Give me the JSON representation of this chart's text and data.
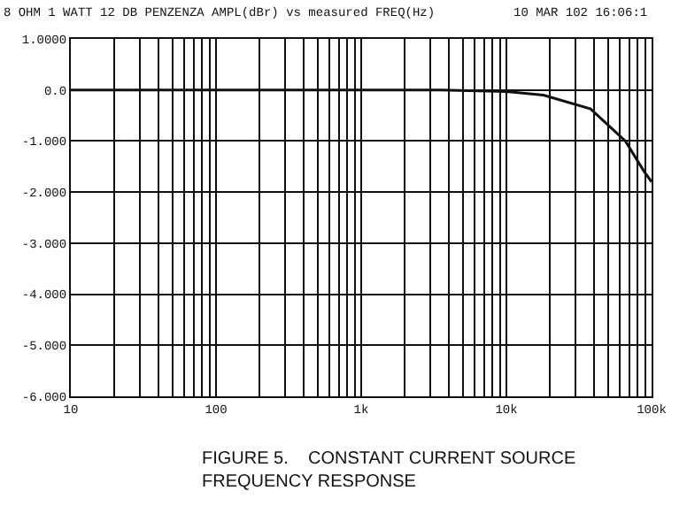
{
  "chart_data": {
    "type": "line",
    "title": "8 OHM 1 WATT 12 DB PENZENZA AMPL(dBr) vs measured FREQ(Hz)",
    "subtitle": "10 MAR 102 16:06:1",
    "x": [
      10,
      100,
      1000,
      3500,
      10000,
      18000,
      38000,
      66000,
      89000,
      100000
    ],
    "series": [
      {
        "color": "#111111",
        "values": [
          0,
          0,
          0,
          0,
          -0.03,
          -0.1,
          -0.37,
          -1.0,
          -1.6,
          -1.8
        ]
      }
    ],
    "log": "x",
    "xlim": [
      10,
      100000
    ],
    "xticks": [
      10,
      100,
      {
        "value": 1000,
        "label": "1k"
      },
      {
        "value": 10000,
        "label": "10k"
      },
      {
        "value": 100000,
        "label": "100k"
      }
    ],
    "ylim": [
      -6,
      1
    ],
    "yticks": [
      {
        "value": 1,
        "label": "1.0000"
      },
      {
        "value": 0,
        "label": "0.0"
      },
      {
        "value": -1,
        "label": "-1.000"
      },
      {
        "value": -2,
        "label": "-2.000"
      },
      {
        "value": -3,
        "label": "-3.000"
      },
      {
        "value": -4,
        "label": "-4.000"
      },
      {
        "value": -5,
        "label": "-5.000"
      },
      {
        "value": -6,
        "label": "-6.000"
      }
    ],
    "grid": true,
    "marker": "none",
    "line_style": "solid",
    "annotations": [
      "FIGURE 5.    CONSTANT CURRENT SOURCE\nFREQUENCY RESPONSE"
    ]
  }
}
